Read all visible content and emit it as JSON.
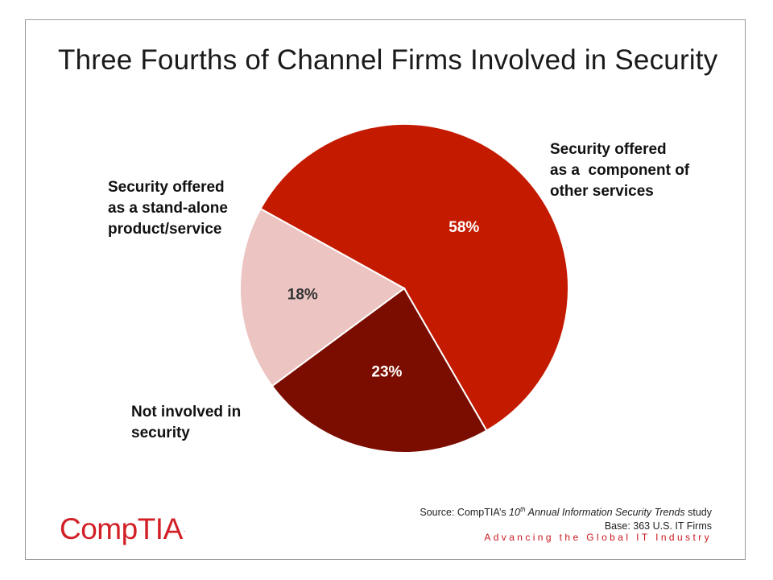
{
  "title": "Three Fourths of Channel Firms Involved in Security",
  "chart_data": {
    "type": "pie",
    "title": "Three Fourths of Channel Firms Involved in Security",
    "slices": [
      {
        "label": "Security offered as a component of other services",
        "value": 58,
        "value_label": "58%",
        "color": "#c41a00"
      },
      {
        "label": "Not involved in security",
        "value": 23,
        "value_label": "23%",
        "color": "#7a0d00"
      },
      {
        "label": "Security offered as a stand-alone product/service",
        "value": 18,
        "value_label": "18%",
        "color": "#ecc4c2"
      }
    ]
  },
  "callouts": {
    "component": [
      "Security offered",
      "as a  component of",
      "other services"
    ],
    "standalone": [
      "Security offered",
      "as a stand-alone",
      "product/service"
    ],
    "none": [
      "Not involved in",
      "security"
    ]
  },
  "source": {
    "prefix": "Source: CompTIA’s ",
    "ordinal": "10",
    "ordinal_suffix": "th",
    "italic_title": " Annual Information Security Trends",
    "suffix": " study",
    "base": "Base: 363 U.S. IT Firms"
  },
  "tagline": "Advancing the Global IT Industry",
  "logo": {
    "text": "CompTIA",
    "mark": ".",
    "color": "#d21f26"
  }
}
